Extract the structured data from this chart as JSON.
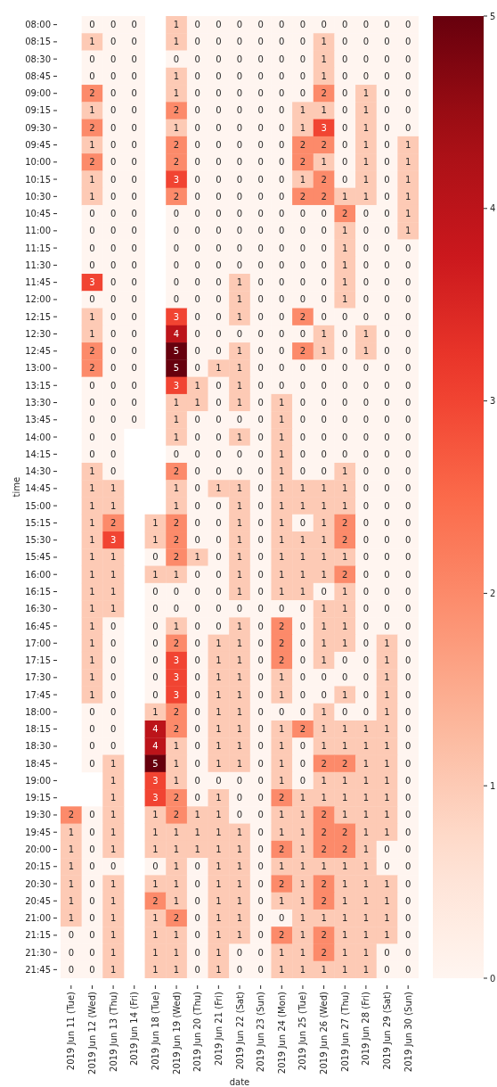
{
  "chart_data": {
    "type": "heatmap",
    "xlabel": "date",
    "ylabel": "time",
    "categories": [
      "2019 Jun 11 (Tue)",
      "2019 Jun 12 (Wed)",
      "2019 Jun 13 (Thu)",
      "2019 Jun 14 (Fri)",
      "2019 Jun 18 (Tue)",
      "2019 Jun 19 (Wed)",
      "2019 Jun 20 (Thu)",
      "2019 Jun 21 (Fri)",
      "2019 Jun 22 (Sat)",
      "2019 Jun 23 (Sun)",
      "2019 Jun 24 (Mon)",
      "2019 Jun 25 (Tue)",
      "2019 Jun 26 (Wed)",
      "2019 Jun 27 (Thu)",
      "2019 Jun 28 (Fri)",
      "2019 Jun 29 (Sat)",
      "2019 Jun 30 (Sun)"
    ],
    "y_categories": [
      "08:00",
      "08:15",
      "08:30",
      "08:45",
      "09:00",
      "09:15",
      "09:30",
      "09:45",
      "10:00",
      "10:15",
      "10:30",
      "10:45",
      "11:00",
      "11:15",
      "11:30",
      "11:45",
      "12:00",
      "12:15",
      "12:30",
      "12:45",
      "13:00",
      "13:15",
      "13:30",
      "13:45",
      "14:00",
      "14:15",
      "14:30",
      "14:45",
      "15:00",
      "15:15",
      "15:30",
      "15:45",
      "16:00",
      "16:15",
      "16:30",
      "16:45",
      "17:00",
      "17:15",
      "17:30",
      "17:45",
      "18:00",
      "18:15",
      "18:30",
      "18:45",
      "19:00",
      "19:15",
      "19:30",
      "19:45",
      "20:00",
      "20:15",
      "20:30",
      "20:45",
      "21:00",
      "21:15",
      "21:30",
      "21:45"
    ],
    "cells": [
      [
        null,
        0,
        0,
        0,
        null,
        1,
        0,
        0,
        0,
        0,
        0,
        0,
        0,
        0,
        0,
        0,
        0
      ],
      [
        null,
        1,
        0,
        0,
        null,
        1,
        0,
        0,
        0,
        0,
        0,
        0,
        1,
        0,
        0,
        0,
        0
      ],
      [
        null,
        0,
        0,
        0,
        null,
        0,
        0,
        0,
        0,
        0,
        0,
        0,
        1,
        0,
        0,
        0,
        0
      ],
      [
        null,
        0,
        0,
        0,
        null,
        1,
        0,
        0,
        0,
        0,
        0,
        0,
        1,
        0,
        0,
        0,
        0
      ],
      [
        null,
        2,
        0,
        0,
        null,
        1,
        0,
        0,
        0,
        0,
        0,
        0,
        2,
        0,
        1,
        0,
        0
      ],
      [
        null,
        1,
        0,
        0,
        null,
        2,
        0,
        0,
        0,
        0,
        0,
        1,
        1,
        0,
        1,
        0,
        0
      ],
      [
        null,
        2,
        0,
        0,
        null,
        1,
        0,
        0,
        0,
        0,
        0,
        1,
        3,
        0,
        1,
        0,
        0
      ],
      [
        null,
        1,
        0,
        0,
        null,
        2,
        0,
        0,
        0,
        0,
        0,
        2,
        2,
        0,
        1,
        0,
        1
      ],
      [
        null,
        2,
        0,
        0,
        null,
        2,
        0,
        0,
        0,
        0,
        0,
        2,
        1,
        0,
        1,
        0,
        1
      ],
      [
        null,
        1,
        0,
        0,
        null,
        3,
        0,
        0,
        0,
        0,
        0,
        1,
        2,
        0,
        1,
        0,
        1
      ],
      [
        null,
        1,
        0,
        0,
        null,
        2,
        0,
        0,
        0,
        0,
        0,
        2,
        2,
        1,
        1,
        0,
        1
      ],
      [
        null,
        0,
        0,
        0,
        null,
        0,
        0,
        0,
        0,
        0,
        0,
        0,
        0,
        2,
        0,
        0,
        1
      ],
      [
        null,
        0,
        0,
        0,
        null,
        0,
        0,
        0,
        0,
        0,
        0,
        0,
        0,
        1,
        0,
        0,
        1
      ],
      [
        null,
        0,
        0,
        0,
        null,
        0,
        0,
        0,
        0,
        0,
        0,
        0,
        0,
        1,
        0,
        0,
        0
      ],
      [
        null,
        0,
        0,
        0,
        null,
        0,
        0,
        0,
        0,
        0,
        0,
        0,
        0,
        1,
        0,
        0,
        0
      ],
      [
        null,
        3,
        0,
        0,
        null,
        0,
        0,
        0,
        1,
        0,
        0,
        0,
        0,
        1,
        0,
        0,
        0
      ],
      [
        null,
        0,
        0,
        0,
        null,
        0,
        0,
        0,
        1,
        0,
        0,
        0,
        0,
        1,
        0,
        0,
        0
      ],
      [
        null,
        1,
        0,
        0,
        null,
        3,
        0,
        0,
        1,
        0,
        0,
        2,
        0,
        0,
        0,
        0,
        0
      ],
      [
        null,
        1,
        0,
        0,
        null,
        4,
        0,
        0,
        0,
        0,
        0,
        0,
        1,
        0,
        1,
        0,
        0
      ],
      [
        null,
        2,
        0,
        0,
        null,
        5,
        0,
        0,
        1,
        0,
        0,
        2,
        1,
        0,
        1,
        0,
        0
      ],
      [
        null,
        2,
        0,
        0,
        null,
        5,
        0,
        1,
        1,
        0,
        0,
        0,
        0,
        0,
        0,
        0,
        0
      ],
      [
        null,
        0,
        0,
        0,
        null,
        3,
        1,
        0,
        1,
        0,
        0,
        0,
        0,
        0,
        0,
        0,
        0
      ],
      [
        null,
        0,
        0,
        0,
        null,
        1,
        1,
        0,
        1,
        0,
        1,
        0,
        0,
        0,
        0,
        0,
        0
      ],
      [
        null,
        0,
        0,
        0,
        null,
        1,
        0,
        0,
        0,
        0,
        1,
        0,
        0,
        0,
        0,
        0,
        0
      ],
      [
        null,
        0,
        0,
        null,
        null,
        1,
        0,
        0,
        1,
        0,
        1,
        0,
        0,
        0,
        0,
        0,
        0
      ],
      [
        null,
        0,
        0,
        null,
        null,
        0,
        0,
        0,
        0,
        0,
        1,
        0,
        0,
        0,
        0,
        0,
        0
      ],
      [
        null,
        1,
        0,
        null,
        null,
        2,
        0,
        0,
        0,
        0,
        1,
        0,
        0,
        1,
        0,
        0,
        0
      ],
      [
        null,
        1,
        1,
        null,
        null,
        1,
        0,
        1,
        1,
        0,
        1,
        1,
        1,
        1,
        0,
        0,
        0
      ],
      [
        null,
        1,
        1,
        null,
        null,
        1,
        0,
        0,
        1,
        0,
        1,
        1,
        1,
        1,
        0,
        0,
        0
      ],
      [
        null,
        1,
        2,
        null,
        1,
        2,
        0,
        0,
        1,
        0,
        1,
        0,
        1,
        2,
        0,
        0,
        0
      ],
      [
        null,
        1,
        3,
        null,
        1,
        2,
        0,
        0,
        1,
        0,
        1,
        1,
        1,
        2,
        0,
        0,
        0
      ],
      [
        null,
        1,
        1,
        null,
        0,
        2,
        1,
        0,
        1,
        0,
        1,
        1,
        1,
        1,
        0,
        0,
        0
      ],
      [
        null,
        1,
        1,
        null,
        1,
        1,
        0,
        0,
        1,
        0,
        1,
        1,
        1,
        2,
        0,
        0,
        0
      ],
      [
        null,
        1,
        1,
        null,
        0,
        0,
        0,
        0,
        1,
        0,
        1,
        1,
        0,
        1,
        0,
        0,
        0
      ],
      [
        null,
        1,
        1,
        null,
        0,
        0,
        0,
        0,
        0,
        0,
        0,
        0,
        1,
        1,
        0,
        0,
        0
      ],
      [
        null,
        1,
        0,
        null,
        0,
        1,
        0,
        0,
        1,
        0,
        2,
        0,
        1,
        1,
        0,
        0,
        0
      ],
      [
        null,
        1,
        0,
        null,
        0,
        2,
        0,
        1,
        1,
        0,
        2,
        0,
        1,
        1,
        0,
        1,
        0
      ],
      [
        null,
        1,
        0,
        null,
        0,
        3,
        0,
        1,
        1,
        0,
        2,
        0,
        1,
        0,
        0,
        1,
        0
      ],
      [
        null,
        1,
        0,
        null,
        0,
        3,
        0,
        1,
        1,
        0,
        1,
        0,
        0,
        0,
        0,
        1,
        0
      ],
      [
        null,
        1,
        0,
        null,
        0,
        3,
        0,
        1,
        1,
        0,
        1,
        0,
        0,
        1,
        0,
        1,
        0
      ],
      [
        null,
        0,
        0,
        null,
        1,
        2,
        0,
        1,
        1,
        0,
        0,
        0,
        1,
        0,
        0,
        1,
        0
      ],
      [
        null,
        0,
        0,
        null,
        4,
        2,
        0,
        1,
        1,
        0,
        1,
        2,
        1,
        1,
        1,
        1,
        0
      ],
      [
        null,
        0,
        0,
        null,
        4,
        1,
        0,
        1,
        1,
        0,
        1,
        0,
        1,
        1,
        1,
        1,
        0
      ],
      [
        null,
        0,
        1,
        null,
        5,
        1,
        0,
        1,
        1,
        0,
        1,
        0,
        2,
        2,
        1,
        1,
        0
      ],
      [
        null,
        null,
        1,
        null,
        3,
        1,
        0,
        0,
        0,
        0,
        1,
        0,
        1,
        1,
        1,
        1,
        0
      ],
      [
        null,
        null,
        1,
        null,
        3,
        2,
        0,
        1,
        0,
        0,
        2,
        1,
        1,
        1,
        1,
        1,
        0
      ],
      [
        2,
        0,
        1,
        null,
        1,
        2,
        1,
        1,
        0,
        0,
        1,
        1,
        2,
        1,
        1,
        1,
        0
      ],
      [
        1,
        0,
        1,
        null,
        1,
        1,
        1,
        1,
        1,
        0,
        1,
        1,
        2,
        2,
        1,
        1,
        0
      ],
      [
        1,
        0,
        1,
        null,
        1,
        1,
        1,
        1,
        1,
        0,
        2,
        1,
        2,
        2,
        1,
        0,
        0
      ],
      [
        1,
        0,
        0,
        null,
        0,
        1,
        0,
        1,
        1,
        0,
        1,
        1,
        1,
        1,
        1,
        0,
        0
      ],
      [
        1,
        0,
        1,
        null,
        1,
        1,
        0,
        1,
        1,
        0,
        2,
        1,
        2,
        1,
        1,
        1,
        0
      ],
      [
        1,
        0,
        1,
        null,
        2,
        1,
        0,
        1,
        1,
        0,
        1,
        1,
        2,
        1,
        1,
        1,
        0
      ],
      [
        1,
        0,
        1,
        null,
        1,
        2,
        0,
        1,
        1,
        0,
        0,
        1,
        1,
        1,
        1,
        1,
        0
      ],
      [
        0,
        0,
        1,
        null,
        1,
        1,
        0,
        1,
        1,
        0,
        2,
        1,
        2,
        1,
        1,
        1,
        0
      ],
      [
        0,
        0,
        1,
        null,
        1,
        1,
        0,
        1,
        0,
        0,
        1,
        1,
        2,
        1,
        1,
        0,
        0
      ],
      [
        0,
        0,
        1,
        null,
        1,
        1,
        0,
        1,
        0,
        0,
        1,
        1,
        1,
        1,
        1,
        0,
        0
      ]
    ],
    "clim": [
      0,
      5
    ],
    "cticks": [
      0,
      1,
      2,
      3,
      4,
      5
    ],
    "data_labels": true
  }
}
